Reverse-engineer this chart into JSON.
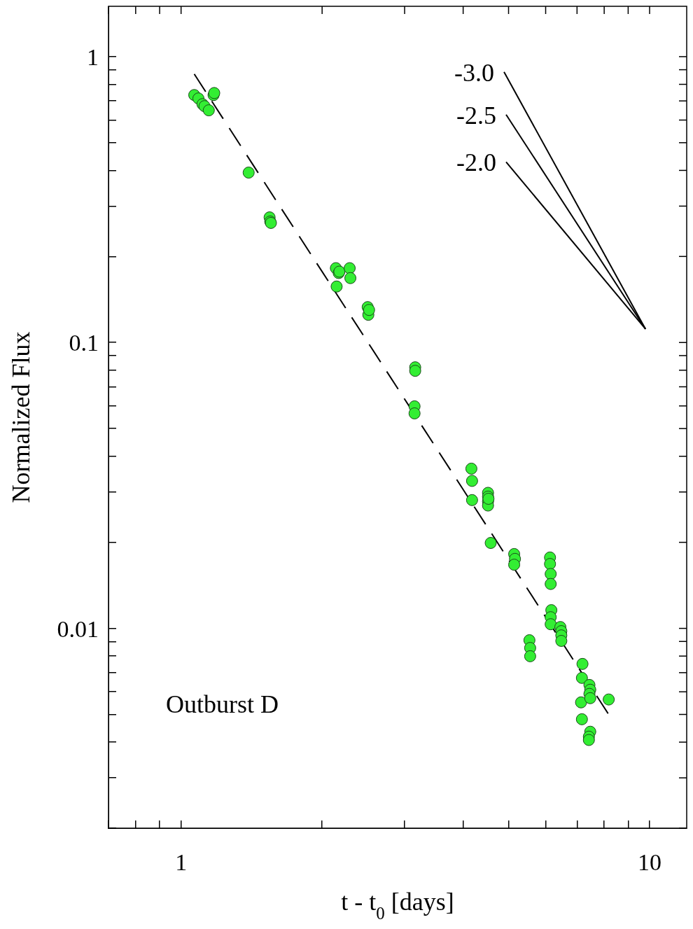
{
  "chart_data": {
    "type": "scatter",
    "xlabel": "t - t$_{0}$ [days]",
    "ylabel": "Normalized Flux",
    "log": "xy",
    "grid": false,
    "legend": false,
    "marker": "circle",
    "xlim": [
      0.7,
      12
    ],
    "ylim": [
      0.002,
      1.5
    ],
    "xticks": [
      {
        "value": 0.7,
        "label": null
      },
      {
        "value": 0.8,
        "label": null
      },
      {
        "value": 0.9,
        "label": null
      },
      1,
      {
        "value": 2,
        "label": null
      },
      {
        "value": 3,
        "label": null
      },
      {
        "value": 4,
        "label": null
      },
      {
        "value": 5,
        "label": null
      },
      {
        "value": 6,
        "label": null
      },
      {
        "value": 7,
        "label": null
      },
      {
        "value": 8,
        "label": null
      },
      {
        "value": 9,
        "label": null
      },
      10
    ],
    "yticks": [
      {
        "value": 0.002,
        "label": null
      },
      {
        "value": 0.003,
        "label": null
      },
      {
        "value": 0.004,
        "label": null
      },
      {
        "value": 0.005,
        "label": null
      },
      {
        "value": 0.006,
        "label": null
      },
      {
        "value": 0.007,
        "label": null
      },
      {
        "value": 0.008,
        "label": null
      },
      {
        "value": 0.009,
        "label": null
      },
      0.01,
      {
        "value": 0.02,
        "label": null
      },
      {
        "value": 0.03,
        "label": null
      },
      {
        "value": 0.04,
        "label": null
      },
      {
        "value": 0.05,
        "label": null
      },
      {
        "value": 0.06,
        "label": null
      },
      {
        "value": 0.07,
        "label": null
      },
      {
        "value": 0.08,
        "label": null
      },
      {
        "value": 0.09,
        "label": null
      },
      0.1,
      {
        "value": 0.2,
        "label": null
      },
      {
        "value": 0.3,
        "label": null
      },
      {
        "value": 0.4,
        "label": null
      },
      {
        "value": 0.5,
        "label": null
      },
      {
        "value": 0.6,
        "label": null
      },
      {
        "value": 0.7,
        "label": null
      },
      {
        "value": 0.8,
        "label": null
      },
      {
        "value": 0.9,
        "label": null
      },
      1
    ],
    "annotations": [
      "Outburst D"
    ],
    "series": [
      {
        "color": "#33ee33",
        "x": [
          1.067,
          1.089,
          1.111,
          1.122,
          1.146,
          1.173,
          1.177,
          1.394,
          1.545,
          1.55,
          1.555,
          2.14,
          2.148,
          2.17,
          2.177,
          2.29,
          2.298,
          2.502,
          2.51,
          2.519,
          3.16,
          3.16,
          3.15,
          3.15,
          4.165,
          4.179,
          4.179,
          4.52,
          4.52,
          4.52,
          4.52,
          4.53,
          4.58,
          5.14,
          5.16,
          5.14,
          5.54,
          5.56,
          5.56,
          6.13,
          6.13,
          6.15,
          6.15,
          6.17,
          6.15,
          6.15,
          6.45,
          6.48,
          6.48,
          6.48,
          7.19,
          7.17,
          7.14,
          7.17,
          7.44,
          7.47,
          7.44,
          7.47,
          7.47,
          7.42,
          7.42,
          8.18
        ],
        "values": [
          0.734,
          0.714,
          0.682,
          0.671,
          0.649,
          0.734,
          0.746,
          0.393,
          0.274,
          0.265,
          0.262,
          0.182,
          0.157,
          0.175,
          0.177,
          0.182,
          0.168,
          0.133,
          0.125,
          0.13,
          0.0819,
          0.0796,
          0.0598,
          0.0565,
          0.0362,
          0.0328,
          0.0281,
          0.0298,
          0.0289,
          0.0278,
          0.0269,
          0.0284,
          0.0199,
          0.0182,
          0.0175,
          0.0167,
          0.00909,
          0.00854,
          0.00799,
          0.0177,
          0.0168,
          0.0155,
          0.0143,
          0.01158,
          0.01094,
          0.01034,
          0.01011,
          0.00978,
          0.00945,
          0.00904,
          0.00751,
          0.00671,
          0.00551,
          0.00481,
          0.00634,
          0.0061,
          0.0059,
          0.0057,
          0.00435,
          0.00418,
          0.00407,
          0.00564
        ]
      },
      {
        "type": "line",
        "color": "#000000",
        "line_style": "dashed",
        "marker": "none",
        "x": [
          1.067,
          8.23
        ],
        "values": [
          0.869,
          0.00492
        ]
      },
      {
        "type": "line",
        "name": "-3.0",
        "color": "#000000",
        "marker": "none",
        "x": [
          4.89,
          9.8
        ],
        "values": [
          0.884,
          0.1115
        ]
      },
      {
        "type": "line",
        "name": "-2.5",
        "color": "#000000",
        "marker": "none",
        "x": [
          4.94,
          9.8
        ],
        "values": [
          0.627,
          0.1115
        ]
      },
      {
        "type": "line",
        "name": "-2.0",
        "color": "#000000",
        "marker": "none",
        "x": [
          4.94,
          9.8
        ],
        "values": [
          0.428,
          0.1115
        ]
      }
    ]
  }
}
